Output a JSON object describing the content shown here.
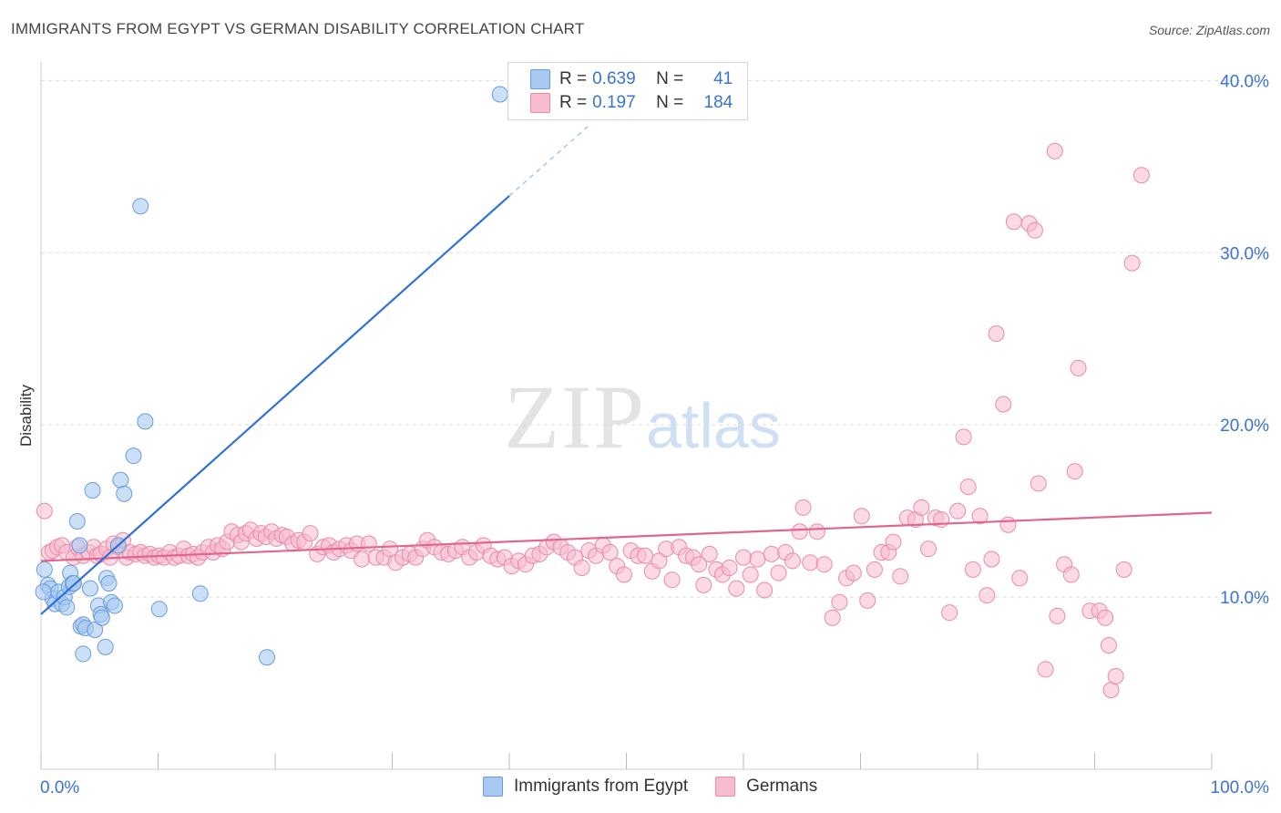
{
  "header": {
    "title": "IMMIGRANTS FROM EGYPT VS GERMAN DISABILITY CORRELATION CHART",
    "source": "Source: ZipAtlas.com"
  },
  "watermark": {
    "zip": "ZIP",
    "atlas": "atlas"
  },
  "legend_top": {
    "rows": [
      {
        "r_label": "R =",
        "r_value": "0.639",
        "n_label": "N =",
        "n_value": "41"
      },
      {
        "r_label": "R =",
        "r_value": "0.197",
        "n_label": "N =",
        "n_value": "184"
      }
    ]
  },
  "legend_bottom": {
    "items": [
      {
        "label": "Immigrants from Egypt"
      },
      {
        "label": "Germans"
      }
    ]
  },
  "colors": {
    "egypt_fill": "#a9c9f0",
    "egypt_stroke": "#6a9be0",
    "egypt_line": "#2f72d4",
    "germans_fill": "#f7bccd",
    "germans_stroke": "#e98aa7",
    "germans_line": "#e0658f",
    "axis_text": "#3b73d1",
    "grid": "#dcdcdc"
  },
  "chart_data": {
    "type": "scatter",
    "title": "IMMIGRANTS FROM EGYPT VS GERMAN DISABILITY CORRELATION CHART",
    "xlabel": "",
    "ylabel": "Disability",
    "xlim": [
      0,
      100
    ],
    "ylim": [
      0,
      41.5
    ],
    "x_tick_labels": [
      "0.0%",
      "100.0%"
    ],
    "y_ticks": [
      10,
      20,
      30,
      40
    ],
    "y_tick_labels": [
      "10.0%",
      "20.0%",
      "30.0%",
      "40.0%"
    ],
    "grid": true,
    "legend": "bottom-center",
    "series": [
      {
        "name": "Immigrants from Egypt",
        "r": 0.639,
        "n": 41,
        "trend": {
          "x0": 0,
          "y0": 9.0,
          "x1": 40,
          "y1": 33.3,
          "dashed_to_x": 47,
          "dashed_to_y": 37.5
        },
        "points": [
          [
            0.3,
            11.6
          ],
          [
            0.6,
            10.7
          ],
          [
            0.8,
            10.5
          ],
          [
            1.0,
            9.9
          ],
          [
            1.2,
            9.6
          ],
          [
            1.5,
            10.3
          ],
          [
            1.8,
            9.6
          ],
          [
            2.0,
            10.0
          ],
          [
            2.2,
            9.4
          ],
          [
            2.4,
            10.6
          ],
          [
            2.5,
            11.4
          ],
          [
            2.7,
            10.8
          ],
          [
            2.8,
            10.8
          ],
          [
            3.1,
            14.4
          ],
          [
            3.3,
            13.0
          ],
          [
            3.4,
            8.3
          ],
          [
            3.6,
            8.4
          ],
          [
            3.6,
            6.7
          ],
          [
            3.8,
            8.2
          ],
          [
            4.2,
            10.5
          ],
          [
            4.4,
            16.2
          ],
          [
            4.6,
            8.1
          ],
          [
            4.9,
            9.5
          ],
          [
            5.1,
            9.0
          ],
          [
            5.2,
            8.8
          ],
          [
            5.5,
            7.1
          ],
          [
            5.6,
            11.1
          ],
          [
            5.8,
            10.8
          ],
          [
            6.0,
            9.7
          ],
          [
            6.3,
            9.5
          ],
          [
            6.6,
            13.0
          ],
          [
            6.8,
            16.8
          ],
          [
            7.1,
            16.0
          ],
          [
            7.9,
            18.2
          ],
          [
            8.5,
            32.7
          ],
          [
            8.9,
            20.2
          ],
          [
            10.1,
            9.3
          ],
          [
            13.6,
            10.2
          ],
          [
            19.3,
            6.5
          ],
          [
            39.2,
            39.2
          ],
          [
            0.2,
            10.3
          ]
        ]
      },
      {
        "name": "Germans",
        "r": 0.197,
        "n": 184,
        "trend": {
          "x0": 0,
          "y0": 12.1,
          "x1": 100,
          "y1": 14.9
        },
        "points": [
          [
            0.3,
            15.0
          ],
          [
            0.7,
            12.6
          ],
          [
            1.0,
            12.7
          ],
          [
            1.4,
            12.9
          ],
          [
            1.8,
            13.0
          ],
          [
            2.2,
            12.6
          ],
          [
            2.8,
            12.3
          ],
          [
            3.1,
            12.9
          ],
          [
            3.6,
            12.4
          ],
          [
            4.1,
            12.6
          ],
          [
            4.5,
            12.9
          ],
          [
            4.8,
            12.4
          ],
          [
            5.1,
            12.5
          ],
          [
            5.6,
            12.8
          ],
          [
            5.9,
            12.3
          ],
          [
            6.2,
            13.1
          ],
          [
            6.6,
            12.9
          ],
          [
            7.0,
            13.3
          ],
          [
            7.3,
            12.3
          ],
          [
            7.6,
            12.6
          ],
          [
            8.1,
            12.5
          ],
          [
            8.5,
            12.6
          ],
          [
            8.9,
            12.4
          ],
          [
            9.3,
            12.5
          ],
          [
            9.7,
            12.3
          ],
          [
            10.1,
            12.4
          ],
          [
            10.5,
            12.3
          ],
          [
            11.0,
            12.6
          ],
          [
            11.4,
            12.3
          ],
          [
            11.8,
            12.4
          ],
          [
            12.2,
            12.8
          ],
          [
            12.6,
            12.4
          ],
          [
            13.0,
            12.5
          ],
          [
            13.4,
            12.3
          ],
          [
            13.8,
            12.6
          ],
          [
            14.3,
            12.9
          ],
          [
            14.7,
            12.6
          ],
          [
            15.1,
            13.0
          ],
          [
            15.5,
            12.8
          ],
          [
            15.9,
            13.2
          ],
          [
            16.3,
            13.8
          ],
          [
            16.8,
            13.6
          ],
          [
            17.1,
            13.2
          ],
          [
            17.5,
            13.7
          ],
          [
            17.9,
            13.9
          ],
          [
            18.4,
            13.4
          ],
          [
            18.8,
            13.7
          ],
          [
            19.2,
            13.5
          ],
          [
            19.7,
            13.8
          ],
          [
            20.1,
            13.4
          ],
          [
            20.6,
            13.6
          ],
          [
            21.0,
            13.5
          ],
          [
            21.5,
            13.1
          ],
          [
            22.0,
            13.3
          ],
          [
            22.5,
            13.2
          ],
          [
            23.0,
            13.7
          ],
          [
            23.6,
            12.5
          ],
          [
            24.1,
            12.9
          ],
          [
            24.6,
            13.0
          ],
          [
            25.0,
            12.6
          ],
          [
            25.5,
            12.8
          ],
          [
            26.1,
            13.0
          ],
          [
            26.5,
            12.7
          ],
          [
            27.0,
            13.1
          ],
          [
            27.4,
            12.2
          ],
          [
            28.0,
            13.1
          ],
          [
            28.6,
            12.3
          ],
          [
            29.3,
            12.3
          ],
          [
            29.8,
            12.8
          ],
          [
            30.3,
            12.0
          ],
          [
            30.9,
            12.3
          ],
          [
            31.5,
            12.5
          ],
          [
            32.0,
            12.3
          ],
          [
            32.6,
            12.8
          ],
          [
            33.0,
            13.3
          ],
          [
            33.6,
            12.9
          ],
          [
            34.2,
            12.6
          ],
          [
            34.8,
            12.5
          ],
          [
            35.4,
            12.7
          ],
          [
            36.0,
            12.9
          ],
          [
            36.6,
            12.3
          ],
          [
            37.2,
            12.6
          ],
          [
            37.8,
            13.0
          ],
          [
            38.4,
            12.4
          ],
          [
            39.0,
            12.2
          ],
          [
            39.6,
            12.3
          ],
          [
            40.2,
            11.8
          ],
          [
            40.8,
            12.1
          ],
          [
            41.4,
            11.9
          ],
          [
            42.0,
            12.4
          ],
          [
            42.6,
            12.5
          ],
          [
            43.2,
            12.9
          ],
          [
            43.8,
            13.2
          ],
          [
            44.4,
            12.9
          ],
          [
            45.0,
            12.6
          ],
          [
            45.6,
            12.3
          ],
          [
            46.2,
            11.7
          ],
          [
            46.8,
            12.7
          ],
          [
            47.4,
            12.4
          ],
          [
            48.0,
            13.0
          ],
          [
            48.6,
            12.6
          ],
          [
            49.2,
            11.8
          ],
          [
            49.8,
            11.3
          ],
          [
            50.4,
            12.7
          ],
          [
            51.0,
            12.4
          ],
          [
            51.6,
            12.4
          ],
          [
            52.2,
            11.5
          ],
          [
            52.8,
            12.1
          ],
          [
            53.4,
            12.8
          ],
          [
            53.9,
            11.0
          ],
          [
            54.5,
            12.9
          ],
          [
            55.1,
            12.4
          ],
          [
            55.7,
            12.3
          ],
          [
            56.2,
            11.9
          ],
          [
            56.6,
            10.7
          ],
          [
            57.1,
            12.5
          ],
          [
            57.7,
            11.6
          ],
          [
            58.2,
            11.3
          ],
          [
            58.8,
            11.7
          ],
          [
            59.4,
            10.5
          ],
          [
            60.0,
            12.3
          ],
          [
            60.6,
            11.3
          ],
          [
            61.2,
            12.2
          ],
          [
            61.8,
            10.4
          ],
          [
            62.4,
            12.5
          ],
          [
            63.0,
            11.4
          ],
          [
            63.6,
            12.6
          ],
          [
            64.2,
            12.1
          ],
          [
            64.8,
            13.8
          ],
          [
            65.1,
            15.2
          ],
          [
            65.7,
            12.0
          ],
          [
            66.3,
            13.8
          ],
          [
            66.9,
            11.9
          ],
          [
            67.6,
            8.8
          ],
          [
            68.2,
            9.7
          ],
          [
            68.8,
            11.1
          ],
          [
            69.4,
            11.4
          ],
          [
            70.1,
            14.7
          ],
          [
            70.6,
            9.8
          ],
          [
            71.2,
            11.6
          ],
          [
            71.8,
            12.6
          ],
          [
            72.4,
            12.6
          ],
          [
            72.8,
            13.2
          ],
          [
            73.4,
            11.2
          ],
          [
            74.0,
            14.6
          ],
          [
            74.7,
            14.5
          ],
          [
            75.2,
            15.2
          ],
          [
            75.8,
            12.8
          ],
          [
            76.4,
            14.6
          ],
          [
            76.9,
            14.5
          ],
          [
            77.6,
            9.1
          ],
          [
            78.3,
            15.0
          ],
          [
            78.8,
            19.3
          ],
          [
            79.2,
            16.4
          ],
          [
            79.6,
            11.6
          ],
          [
            80.2,
            14.7
          ],
          [
            80.8,
            10.1
          ],
          [
            81.2,
            12.2
          ],
          [
            81.6,
            25.3
          ],
          [
            82.2,
            21.2
          ],
          [
            82.6,
            14.2
          ],
          [
            83.1,
            31.8
          ],
          [
            83.6,
            11.1
          ],
          [
            84.4,
            31.7
          ],
          [
            84.9,
            31.3
          ],
          [
            85.2,
            16.6
          ],
          [
            85.8,
            5.8
          ],
          [
            86.6,
            35.9
          ],
          [
            87.4,
            11.9
          ],
          [
            88.0,
            11.3
          ],
          [
            88.3,
            17.3
          ],
          [
            88.6,
            23.3
          ],
          [
            89.6,
            9.2
          ],
          [
            90.4,
            9.2
          ],
          [
            90.9,
            8.8
          ],
          [
            91.2,
            7.2
          ],
          [
            91.4,
            4.6
          ],
          [
            91.8,
            5.4
          ],
          [
            92.5,
            11.6
          ],
          [
            93.2,
            29.4
          ],
          [
            94.0,
            34.5
          ],
          [
            86.8,
            8.9
          ]
        ]
      }
    ]
  }
}
